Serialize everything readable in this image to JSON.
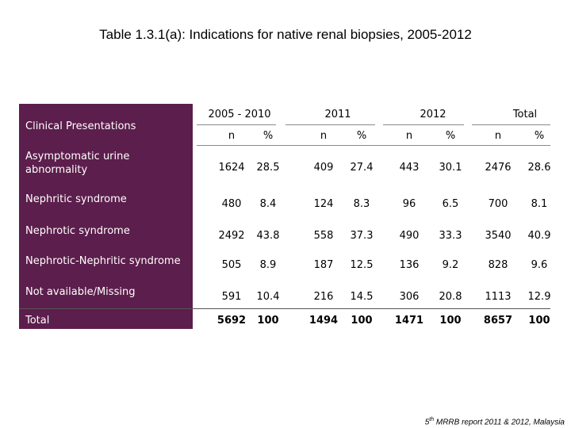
{
  "title": "Table 1.3.1(a): Indications for native renal biopsies, 2005-2012",
  "table": {
    "corner_label": "Clinical Presentations",
    "groups": [
      "2005 - 2010",
      "2011",
      "2012",
      "Total"
    ],
    "subheaders": [
      "n",
      "%",
      "n",
      "%",
      "n",
      "%",
      "n",
      "%"
    ],
    "rows": [
      {
        "label": "Asymptomatic urine abnormality",
        "values": [
          "1624",
          "28.5",
          "409",
          "27.4",
          "443",
          "30.1",
          "2476",
          "28.6"
        ]
      },
      {
        "label": "Nephritic syndrome",
        "values": [
          "480",
          "8.4",
          "124",
          "8.3",
          "96",
          "6.5",
          "700",
          "8.1"
        ]
      },
      {
        "label": "Nephrotic syndrome",
        "values": [
          "2492",
          "43.8",
          "558",
          "37.3",
          "490",
          "33.3",
          "3540",
          "40.9"
        ]
      },
      {
        "label": "Nephrotic-Nephritic syndrome",
        "values": [
          "505",
          "8.9",
          "187",
          "12.5",
          "136",
          "9.2",
          "828",
          "9.6"
        ]
      },
      {
        "label": "Not available/Missing",
        "values": [
          "591",
          "10.4",
          "216",
          "14.5",
          "306",
          "20.8",
          "1113",
          "12.9"
        ]
      },
      {
        "label": "Total",
        "values": [
          "5692",
          "100",
          "1494",
          "100",
          "1471",
          "100",
          "8657",
          "100"
        ]
      }
    ]
  },
  "footer": {
    "superscript": "th",
    "number": "5",
    "text": " MRRB report 2011 & 2012, Malaysia"
  },
  "colors": {
    "sidebar": "#5c1e4c"
  }
}
